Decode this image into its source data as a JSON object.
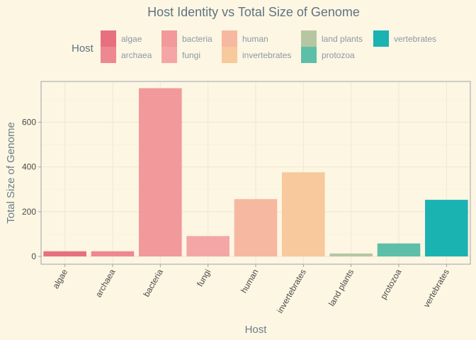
{
  "chart_data": {
    "type": "bar",
    "title": "Host Identity vs Total Size of Genome",
    "xlabel": "Host",
    "ylabel": "Total Size of Genome",
    "categories": [
      "algae",
      "archaea",
      "bacteria",
      "fungi",
      "human",
      "invertebrates",
      "land plants",
      "protozoa",
      "vertebrates"
    ],
    "values": [
      23,
      23,
      752,
      91,
      256,
      376,
      13,
      58,
      253
    ],
    "ylim": [
      0,
      750
    ],
    "yticks": [
      0,
      200,
      400,
      600
    ],
    "grid": true,
    "colors": [
      "#e8707e",
      "#ee8890",
      "#f2999c",
      "#f4a6a6",
      "#f6b8a0",
      "#f7c99c",
      "#b5c7a1",
      "#5dbfa8",
      "#1bb2b2"
    ],
    "legend": {
      "title": "Host",
      "placement": "top",
      "entries": [
        "algae",
        "archaea",
        "bacteria",
        "fungi",
        "human",
        "invertebrates",
        "land plants",
        "protozoa",
        "vertebrates"
      ]
    }
  }
}
